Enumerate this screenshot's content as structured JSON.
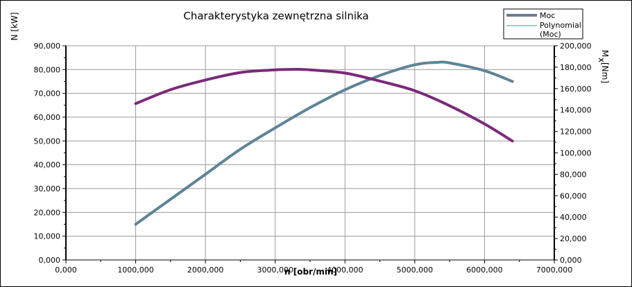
{
  "chart_data": {
    "type": "line",
    "title": "Charakterystyka zewnętrzna silnika",
    "xlabel": "n [obr/min]",
    "ylabel_left": "N [kW]",
    "ylabel_right_main": "M",
    "ylabel_right_sub": "x",
    "ylabel_right_unit": "[Nm]",
    "xlim": [
      0,
      7000
    ],
    "ylim_left": [
      0,
      90
    ],
    "ylim_right": [
      0,
      200
    ],
    "grid": true,
    "legend_position": "top-right",
    "x_ticks": [
      "0,000",
      "1000,000",
      "2000,000",
      "3000,000",
      "4000,000",
      "5000,000",
      "6000,000",
      "7000,000"
    ],
    "y_left_ticks": [
      "0,000",
      "10,000",
      "20,000",
      "30,000",
      "40,000",
      "50,000",
      "60,000",
      "70,000",
      "80,000",
      "90,000"
    ],
    "y_right_ticks": [
      "0,000",
      "20,000",
      "40,000",
      "60,000",
      "80,000",
      "100,000",
      "120,000",
      "140,000",
      "160,000",
      "180,000",
      "200,000"
    ],
    "series": [
      {
        "name": "Moc",
        "axis": "left",
        "color": "#6b7b95",
        "x": [
          1000,
          1500,
          2000,
          2500,
          3000,
          3500,
          4000,
          4500,
          5000,
          5300,
          5500,
          6000,
          6400
        ],
        "values": [
          15.0,
          25.5,
          36.0,
          46.5,
          55.5,
          64.0,
          71.5,
          77.5,
          82.0,
          83.0,
          82.8,
          79.5,
          75.0
        ]
      },
      {
        "name": "Polynomial (Moc)",
        "axis": "left",
        "color": "#3a9a9a",
        "x": [
          1000,
          1500,
          2000,
          2500,
          3000,
          3500,
          4000,
          4500,
          5000,
          5300,
          5500,
          6000,
          6400
        ],
        "values": [
          15.0,
          25.5,
          36.0,
          46.5,
          55.5,
          64.0,
          71.5,
          77.5,
          82.0,
          83.0,
          82.8,
          79.5,
          75.0
        ]
      },
      {
        "name": "Mx",
        "axis": "right",
        "color": "#7a2a7a",
        "x": [
          1000,
          1500,
          2000,
          2500,
          3000,
          3300,
          3500,
          4000,
          4500,
          5000,
          5500,
          6000,
          6400
        ],
        "values": [
          146,
          159,
          168,
          175,
          177.5,
          178,
          177.5,
          174.5,
          167,
          158,
          144,
          127,
          111
        ]
      }
    ]
  }
}
